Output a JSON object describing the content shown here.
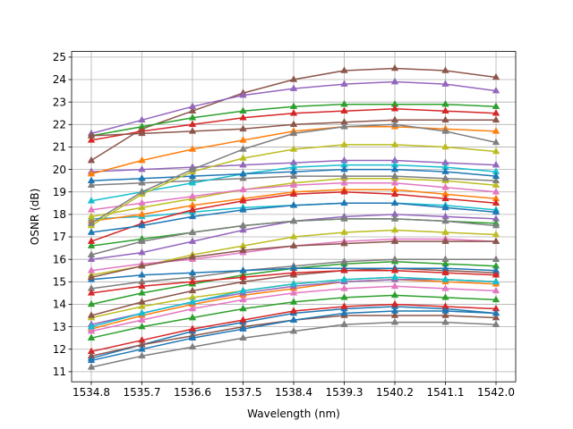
{
  "chart_data": {
    "type": "line",
    "title": "",
    "xlabel": "Wavelength (nm)",
    "ylabel": "OSNR (dB)",
    "xlim": [
      1534.45,
      1542.35
    ],
    "ylim": [
      10.55,
      25.25
    ],
    "grid": true,
    "legend": "none",
    "marker": "triangle",
    "x_ticks": [
      "1534.8",
      "1535.7",
      "1536.6",
      "1537.5",
      "1538.4",
      "1539.3",
      "1540.2",
      "1541.1",
      "1542.0"
    ],
    "y_ticks": [
      "11",
      "12",
      "13",
      "14",
      "15",
      "16",
      "17",
      "18",
      "19",
      "20",
      "21",
      "22",
      "23",
      "24",
      "25"
    ],
    "x": [
      1534.8,
      1535.7,
      1536.6,
      1537.5,
      1538.4,
      1539.3,
      1540.2,
      1541.1,
      1542.0
    ],
    "series": [
      {
        "color": "#1f77b4",
        "values": [
          11.6,
          12.2,
          12.8,
          13.2,
          13.6,
          13.8,
          13.9,
          13.8,
          13.6
        ]
      },
      {
        "color": "#ff7f0e",
        "values": [
          12.9,
          13.5,
          14.0,
          14.4,
          14.7,
          15.0,
          15.1,
          15.0,
          14.9
        ]
      },
      {
        "color": "#2ca02c",
        "values": [
          12.5,
          13.0,
          13.4,
          13.8,
          14.1,
          14.3,
          14.4,
          14.3,
          14.2
        ]
      },
      {
        "color": "#d62728",
        "values": [
          11.9,
          12.4,
          12.9,
          13.3,
          13.7,
          13.9,
          14.0,
          13.9,
          13.8
        ]
      },
      {
        "color": "#9467bd",
        "values": [
          13.1,
          13.6,
          14.1,
          14.5,
          14.8,
          15.0,
          15.1,
          15.1,
          15.0
        ]
      },
      {
        "color": "#8c564b",
        "values": [
          11.7,
          12.2,
          12.6,
          13.0,
          13.3,
          13.5,
          13.5,
          13.5,
          13.4
        ]
      },
      {
        "color": "#e377c2",
        "values": [
          12.8,
          13.3,
          13.8,
          14.2,
          14.5,
          14.7,
          14.8,
          14.7,
          14.6
        ]
      },
      {
        "color": "#7f7f7f",
        "values": [
          11.2,
          11.7,
          12.1,
          12.5,
          12.8,
          13.1,
          13.2,
          13.2,
          13.1
        ]
      },
      {
        "color": "#bcbd22",
        "values": [
          13.4,
          13.9,
          14.3,
          14.6,
          14.9,
          15.1,
          15.2,
          15.1,
          15.0
        ]
      },
      {
        "color": "#17becf",
        "values": [
          13.0,
          13.6,
          14.1,
          14.6,
          14.9,
          15.1,
          15.2,
          15.1,
          15.0
        ]
      },
      {
        "color": "#1f77b4",
        "values": [
          11.5,
          12.0,
          12.5,
          12.9,
          13.3,
          13.6,
          13.7,
          13.7,
          13.6
        ]
      },
      {
        "color": "#2ca02c",
        "values": [
          14.0,
          14.5,
          14.9,
          15.3,
          15.6,
          15.8,
          15.9,
          15.8,
          15.7
        ]
      },
      {
        "color": "#8c564b",
        "values": [
          13.5,
          14.1,
          14.6,
          15.0,
          15.3,
          15.5,
          15.6,
          15.5,
          15.4
        ]
      },
      {
        "color": "#7f7f7f",
        "values": [
          14.7,
          15.0,
          15.2,
          15.5,
          15.7,
          15.9,
          16.0,
          16.0,
          16.0
        ]
      },
      {
        "color": "#1f77b4",
        "values": [
          15.1,
          15.3,
          15.4,
          15.5,
          15.6,
          15.6,
          15.6,
          15.6,
          15.5
        ]
      },
      {
        "color": "#d62728",
        "values": [
          14.5,
          14.8,
          15.0,
          15.2,
          15.4,
          15.5,
          15.5,
          15.4,
          15.3
        ]
      },
      {
        "color": "#bcbd22",
        "values": [
          15.3,
          15.7,
          16.2,
          16.6,
          17.0,
          17.2,
          17.3,
          17.2,
          17.1
        ]
      },
      {
        "color": "#e377c2",
        "values": [
          15.5,
          15.8,
          16.0,
          16.3,
          16.6,
          16.8,
          16.9,
          16.9,
          16.8
        ]
      },
      {
        "color": "#8c564b",
        "values": [
          15.2,
          15.7,
          16.1,
          16.4,
          16.6,
          16.7,
          16.8,
          16.8,
          16.8
        ]
      },
      {
        "color": "#9467bd",
        "values": [
          16.0,
          16.3,
          16.8,
          17.3,
          17.7,
          17.9,
          18.0,
          17.9,
          17.8
        ]
      },
      {
        "color": "#2ca02c",
        "values": [
          16.6,
          16.9,
          17.2,
          17.5,
          17.7,
          17.8,
          17.8,
          17.7,
          17.6
        ]
      },
      {
        "color": "#7f7f7f",
        "values": [
          16.2,
          16.8,
          17.2,
          17.5,
          17.7,
          17.8,
          17.8,
          17.7,
          17.5
        ]
      },
      {
        "color": "#17becf",
        "values": [
          17.8,
          17.9,
          18.1,
          18.3,
          18.4,
          18.5,
          18.5,
          18.4,
          18.2
        ]
      },
      {
        "color": "#ff7f0e",
        "values": [
          17.7,
          18.0,
          18.4,
          18.7,
          19.0,
          19.1,
          19.1,
          18.9,
          18.7
        ]
      },
      {
        "color": "#d62728",
        "values": [
          16.8,
          17.6,
          18.2,
          18.6,
          18.9,
          19.0,
          18.9,
          18.7,
          18.5
        ]
      },
      {
        "color": "#bcbd22",
        "values": [
          17.9,
          18.3,
          18.7,
          19.1,
          19.4,
          19.6,
          19.6,
          19.5,
          19.3
        ]
      },
      {
        "color": "#1f77b4",
        "values": [
          17.2,
          17.5,
          17.9,
          18.2,
          18.4,
          18.5,
          18.5,
          18.3,
          18.1
        ]
      },
      {
        "color": "#e377c2",
        "values": [
          18.2,
          18.5,
          18.8,
          19.1,
          19.3,
          19.4,
          19.4,
          19.2,
          19.0
        ]
      },
      {
        "color": "#7f7f7f",
        "values": [
          19.3,
          19.4,
          19.5,
          19.6,
          19.7,
          19.7,
          19.7,
          19.6,
          19.5
        ]
      },
      {
        "color": "#9467bd",
        "values": [
          19.9,
          20.0,
          20.1,
          20.2,
          20.3,
          20.4,
          20.4,
          20.3,
          20.2
        ]
      },
      {
        "color": "#17becf",
        "values": [
          18.6,
          19.0,
          19.4,
          19.8,
          20.1,
          20.2,
          20.2,
          20.1,
          19.9
        ]
      },
      {
        "color": "#1f77b4",
        "values": [
          19.5,
          19.6,
          19.7,
          19.8,
          19.9,
          20.0,
          20.0,
          19.9,
          19.7
        ]
      },
      {
        "color": "#ff7f0e",
        "values": [
          19.8,
          20.4,
          20.9,
          21.3,
          21.7,
          21.9,
          21.9,
          21.8,
          21.7
        ]
      },
      {
        "color": "#8c564b",
        "values": [
          20.4,
          21.8,
          22.6,
          23.4,
          24.0,
          24.4,
          24.5,
          24.4,
          24.1
        ]
      },
      {
        "color": "#9467bd",
        "values": [
          21.6,
          22.2,
          22.8,
          23.3,
          23.6,
          23.8,
          23.9,
          23.8,
          23.5
        ]
      },
      {
        "color": "#2ca02c",
        "values": [
          21.5,
          21.9,
          22.3,
          22.6,
          22.8,
          22.9,
          22.9,
          22.9,
          22.8
        ]
      },
      {
        "color": "#d62728",
        "values": [
          21.3,
          21.7,
          22.0,
          22.3,
          22.5,
          22.6,
          22.7,
          22.6,
          22.5
        ]
      },
      {
        "color": "#8c564b",
        "values": [
          21.5,
          21.6,
          21.7,
          21.8,
          22.0,
          22.1,
          22.2,
          22.2,
          22.2
        ]
      },
      {
        "color": "#bcbd22",
        "values": [
          17.5,
          18.9,
          19.9,
          20.5,
          20.9,
          21.1,
          21.1,
          21.0,
          20.8
        ]
      },
      {
        "color": "#7f7f7f",
        "values": [
          17.6,
          19.0,
          20.0,
          20.9,
          21.6,
          21.9,
          22.0,
          21.7,
          21.2
        ]
      }
    ]
  }
}
